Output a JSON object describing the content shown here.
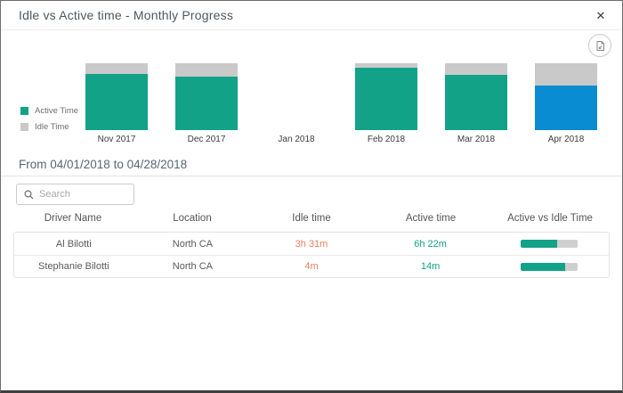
{
  "dialog": {
    "title": "Idle vs Active time - Monthly Progress",
    "close_label": "✕"
  },
  "chart_data": {
    "type": "bar",
    "stacked": true,
    "title": "Idle vs Active time - Monthly Progress",
    "categories": [
      "Nov 2017",
      "Dec 2017",
      "Jan 2018",
      "Feb 2018",
      "Mar 2018",
      "Apr 2018"
    ],
    "series": [
      {
        "name": "Active Time",
        "color": "#12a287",
        "values_pct": [
          84,
          80,
          null,
          93,
          83,
          67
        ]
      },
      {
        "name": "Idle Time",
        "color": "#c9c9c9",
        "values_pct": [
          16,
          20,
          null,
          7,
          17,
          33
        ]
      }
    ],
    "unit": "percent",
    "selected_category": "Apr 2018",
    "selected_active_color": "#0a8cd2",
    "legend_position": "left",
    "xlabel": "",
    "ylabel": ""
  },
  "period": {
    "label": "From 04/01/2018 to 04/28/2018"
  },
  "search": {
    "placeholder": "Search"
  },
  "table": {
    "headers": [
      "Driver Name",
      "Location",
      "Idle time",
      "Active time",
      "Active vs Idle Time"
    ],
    "rows": [
      {
        "driver_name": "Al Bilotti",
        "location": "North CA",
        "idle_time": "3h 31m",
        "active_time": "6h 22m",
        "active_pct": 64
      },
      {
        "driver_name": "Stephanie Bilotti",
        "location": "North CA",
        "idle_time": "4m",
        "active_time": "14m",
        "active_pct": 78
      }
    ]
  },
  "colors": {
    "active": "#12a287",
    "idle": "#c9c9c9",
    "selected_month": "#0a8cd2",
    "idle_text": "#e8805d",
    "active_text": "#12a287"
  }
}
